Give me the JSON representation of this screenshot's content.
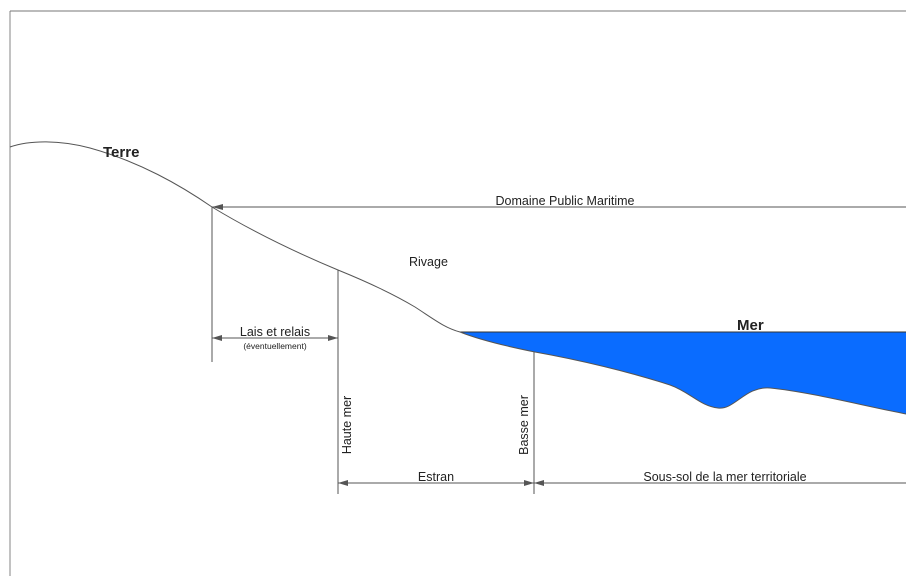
{
  "labels": {
    "terre": "Terre",
    "mer": "Mer",
    "domaine": "Domaine Public Maritime",
    "rivage": "Rivage",
    "lais": "Lais et relais",
    "eventuellement": "(éventuellement)",
    "haute_mer": "Haute mer",
    "basse_mer": "Basse mer",
    "estran": "Estran",
    "sous_sol": "Sous-sol de la mer territoriale"
  },
  "colors": {
    "sea": "#0a6cff",
    "line": "#555555",
    "text": "#222222"
  }
}
